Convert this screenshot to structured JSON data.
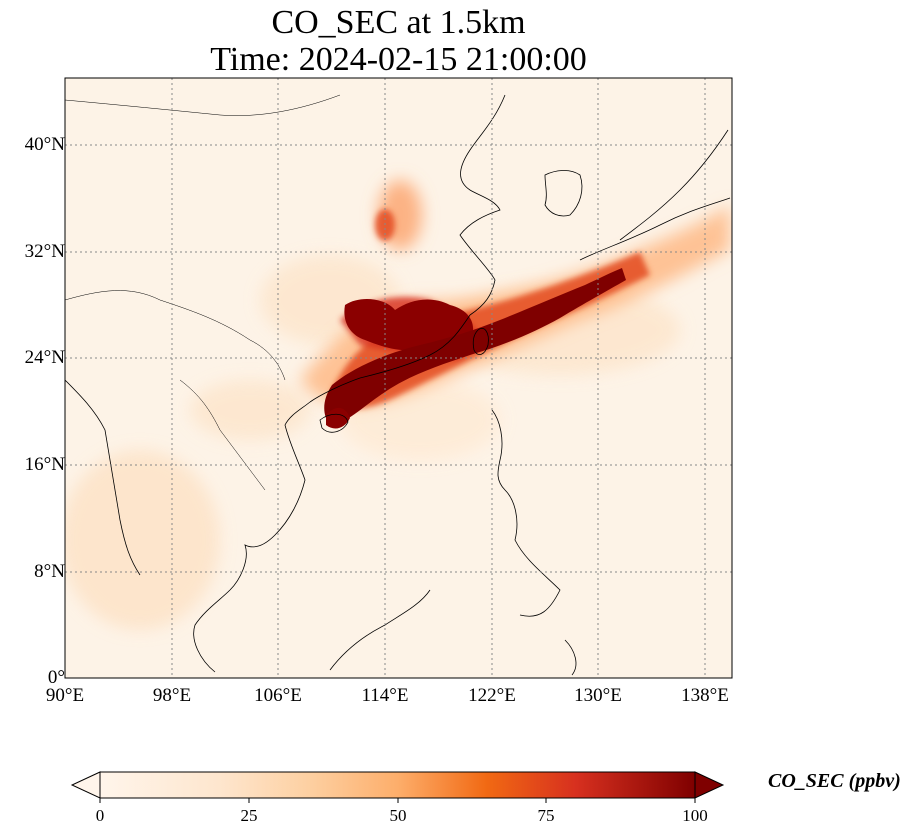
{
  "title": {
    "line1": "CO_SEC at 1.5km",
    "line2": "Time: 2024-02-15 21:00:00"
  },
  "map": {
    "lon_range": [
      90,
      140
    ],
    "lat_range": [
      0,
      45
    ],
    "lon_ticks": [
      "90°E",
      "98°E",
      "106°E",
      "114°E",
      "122°E",
      "130°E",
      "138°E"
    ],
    "lat_ticks": [
      "0°",
      "8°N",
      "16°N",
      "24°N",
      "32°N",
      "40°N"
    ],
    "gridlines": "dotted"
  },
  "colorbar": {
    "label": "CO_SEC (ppbv)",
    "ticks": [
      "0",
      "25",
      "50",
      "75",
      "100"
    ],
    "range": [
      0,
      100
    ],
    "extend": "both",
    "colormap": [
      "#fff5eb",
      "#fdd49e",
      "#fdae6b",
      "#f16913",
      "#d7301f",
      "#7f0000"
    ]
  },
  "plume": {
    "description_color_max": "#7f0000"
  }
}
